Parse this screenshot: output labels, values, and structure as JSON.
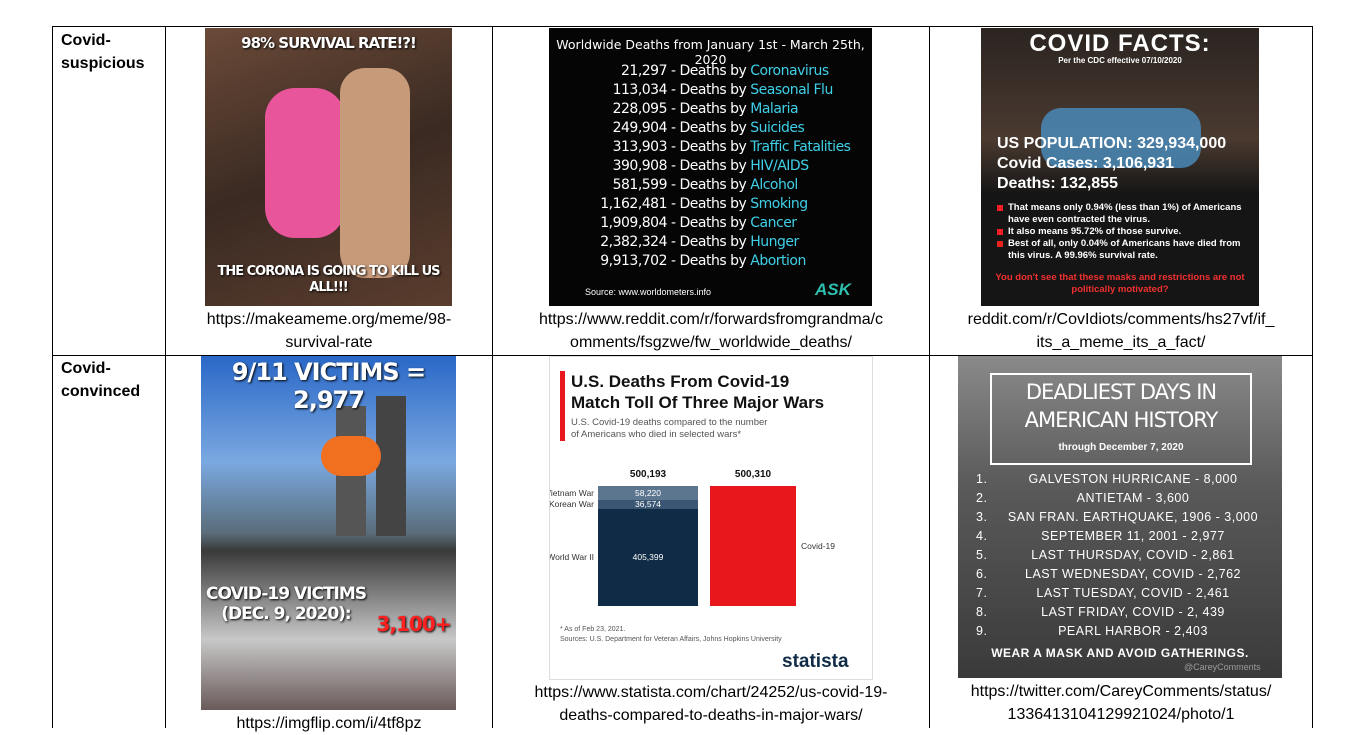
{
  "table": {
    "rows": [
      {
        "label": [
          "Covid-",
          "suspicious"
        ],
        "cells": [
          {
            "top_text": "98% SURVIVAL RATE!?!",
            "bottom_text": [
              "THE CORONA IS GOING TO KILL US",
              "ALL!!!"
            ],
            "caption": [
              "https://makeameme.org/meme/98-",
              "survival-rate"
            ]
          },
          {
            "title": "Worldwide Deaths from January 1st - March 25th, 2020",
            "items": [
              {
                "count": "21,297",
                "label": "- Deaths by",
                "cause": "Coronavirus"
              },
              {
                "count": "113,034",
                "label": "- Deaths by",
                "cause": "Seasonal Flu"
              },
              {
                "count": "228,095",
                "label": "- Deaths by",
                "cause": "Malaria"
              },
              {
                "count": "249,904",
                "label": "- Deaths by",
                "cause": "Suicides"
              },
              {
                "count": "313,903",
                "label": "- Deaths by",
                "cause": "Traffic Fatalities"
              },
              {
                "count": "390,908",
                "label": "- Deaths by",
                "cause": "HIV/AIDS"
              },
              {
                "count": "581,599",
                "label": "- Deaths by",
                "cause": "Alcohol"
              },
              {
                "count": "1,162,481",
                "label": "- Deaths by",
                "cause": "Smoking"
              },
              {
                "count": "1,909,804",
                "label": "- Deaths by",
                "cause": "Cancer"
              },
              {
                "count": "2,382,324",
                "label": "- Deaths by",
                "cause": "Hunger"
              },
              {
                "count": "9,913,702",
                "label": "- Deaths by",
                "cause": "Abortion"
              }
            ],
            "source": "Source: www.worldometers.info",
            "brand": "ASK",
            "caption": [
              "https://www.reddit.com/r/forwardsfromgrandma/c",
              "omments/fsgzwe/fw_worldwide_deaths/"
            ]
          },
          {
            "heading": "COVID FACTS:",
            "subheading": "Per the CDC effective 07/10/2020",
            "stats": [
              "US POPULATION: 329,934,000",
              "Covid Cases: 3,106,931",
              "Deaths: 132,855"
            ],
            "bullets": [
              "That means only 0.94% (less than 1%) of Americans have even contracted the virus.",
              "It also means 95.72% of those survive.",
              "Best of all, only 0.04% of Americans have died from this virus. A 99.96% survival rate."
            ],
            "warning": "You don't see that these masks and restrictions are not politically motivated?",
            "caption": [
              "reddit.com/r/CovIdiots/comments/hs27vf/if_",
              "its_a_meme_its_a_fact/"
            ]
          }
        ]
      },
      {
        "label": [
          "Covid-",
          "convinced"
        ],
        "cells": [
          {
            "top_text": "9/11 VICTIMS = 2,977",
            "bottom_text": [
              "COVID-19 VICTIMS",
              "(DEC. 9, 2020):"
            ],
            "highlight": "3,100+",
            "caption": [
              "https://imgflip.com/i/4tf8pz"
            ]
          },
          {
            "title": [
              "U.S. Deaths From Covid-19",
              "Match Toll Of Three Major Wars"
            ],
            "subtitle": [
              "U.S. Covid-19 deaths compared to the number",
              "of Americans who died in selected wars*"
            ],
            "stack_total_label": "500,193",
            "stack": [
              {
                "name": "World War II",
                "value": 405399,
                "value_label": "405,399",
                "color": "#0f2b45"
              },
              {
                "name": "Korean War",
                "value": 36574,
                "value_label": "36,574",
                "color": "#3b5673"
              },
              {
                "name": "Vietnam War",
                "value": 58220,
                "value_label": "58,220",
                "color": "#5d7690"
              }
            ],
            "covid": {
              "name": "Covid-19",
              "value": 500310,
              "value_label": "500,310",
              "color": "#e8171b"
            },
            "notes": [
              "* As of Feb 23, 2021.",
              "Sources: U.S. Department for Veteran Affairs, Johns Hopkins University"
            ],
            "brand": "statista",
            "caption": [
              "https://www.statista.com/chart/24252/us-covid-19-",
              "deaths-compared-to-deaths-in-major-wars/"
            ]
          },
          {
            "title": [
              "DEADLIEST DAYS IN",
              "AMERICAN HISTORY"
            ],
            "subtitle": "through December 7, 2020",
            "items": [
              {
                "n": "1.",
                "text": "GALVESTON HURRICANE - 8,000"
              },
              {
                "n": "2.",
                "text": "ANTIETAM - 3,600"
              },
              {
                "n": "3.",
                "text": "SAN FRAN. EARTHQUAKE, 1906 - 3,000"
              },
              {
                "n": "4.",
                "text": "SEPTEMBER 11, 2001 - 2,977"
              },
              {
                "n": "5.",
                "text": "LAST THURSDAY, COVID - 2,861"
              },
              {
                "n": "6.",
                "text": "LAST WEDNESDAY, COVID - 2,762"
              },
              {
                "n": "7.",
                "text": "LAST TUESDAY, COVID - 2,461"
              },
              {
                "n": "8.",
                "text": "LAST FRIDAY, COVID - 2, 439"
              },
              {
                "n": "9.",
                "text": "PEARL HARBOR - 2,403"
              }
            ],
            "footer": "WEAR A MASK AND AVOID GATHERINGS.",
            "credit": "@CareyComments",
            "caption": [
              "https://twitter.com/CareyComments/status/",
              "1336413104129921024/photo/1"
            ]
          }
        ]
      }
    ]
  }
}
